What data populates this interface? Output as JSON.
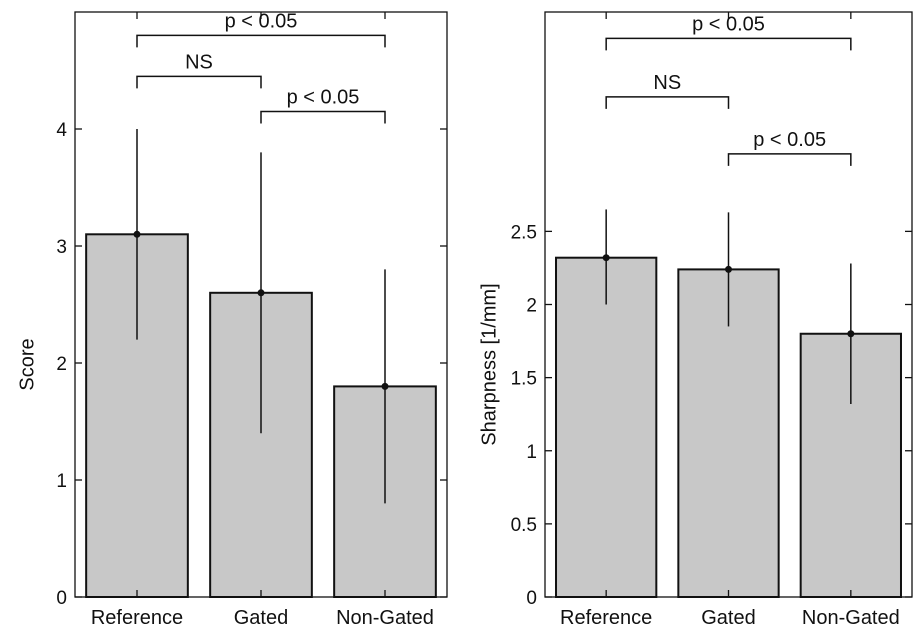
{
  "colors": {
    "bar_fill": "#c8c8c8",
    "ink": "#111111"
  },
  "chart_data": [
    {
      "type": "bar",
      "categories": [
        "Reference",
        "Gated",
        "Non-Gated"
      ],
      "values": [
        3.1,
        2.6,
        1.8
      ],
      "error_low": [
        2.2,
        1.4,
        0.8
      ],
      "error_high": [
        4.0,
        3.8,
        2.8
      ],
      "ylabel": "Score",
      "ylim": [
        0,
        5
      ],
      "yticks": [
        0,
        1,
        2,
        3,
        4
      ],
      "ytick_labels": [
        "0",
        "1",
        "2",
        "3",
        "4"
      ],
      "grid": false,
      "annotations": [
        {
          "text": "p < 0.05",
          "from": 0,
          "to": 2,
          "y": 4.8
        },
        {
          "text": "NS",
          "from": 0,
          "to": 1,
          "y": 4.45
        },
        {
          "text": "p < 0.05",
          "from": 1,
          "to": 2,
          "y": 4.15
        }
      ]
    },
    {
      "type": "bar",
      "categories": [
        "Reference",
        "Gated",
        "Non-Gated"
      ],
      "values": [
        2.32,
        2.24,
        1.8
      ],
      "error_low": [
        2.0,
        1.85,
        1.32
      ],
      "error_high": [
        2.65,
        2.63,
        2.28
      ],
      "ylabel": "Sharpness [1/mm]",
      "ylim": [
        0,
        4
      ],
      "yticks": [
        0,
        0.5,
        1,
        1.5,
        2,
        2.5
      ],
      "ytick_labels": [
        "0",
        "0.5",
        "1",
        "1.5",
        "2",
        "2.5"
      ],
      "grid": false,
      "annotations": [
        {
          "text": "p < 0.05",
          "from": 0,
          "to": 2,
          "y": 3.82
        },
        {
          "text": "NS",
          "from": 0,
          "to": 1,
          "y": 3.42
        },
        {
          "text": "p < 0.05",
          "from": 1,
          "to": 2,
          "y": 3.03
        }
      ]
    }
  ]
}
